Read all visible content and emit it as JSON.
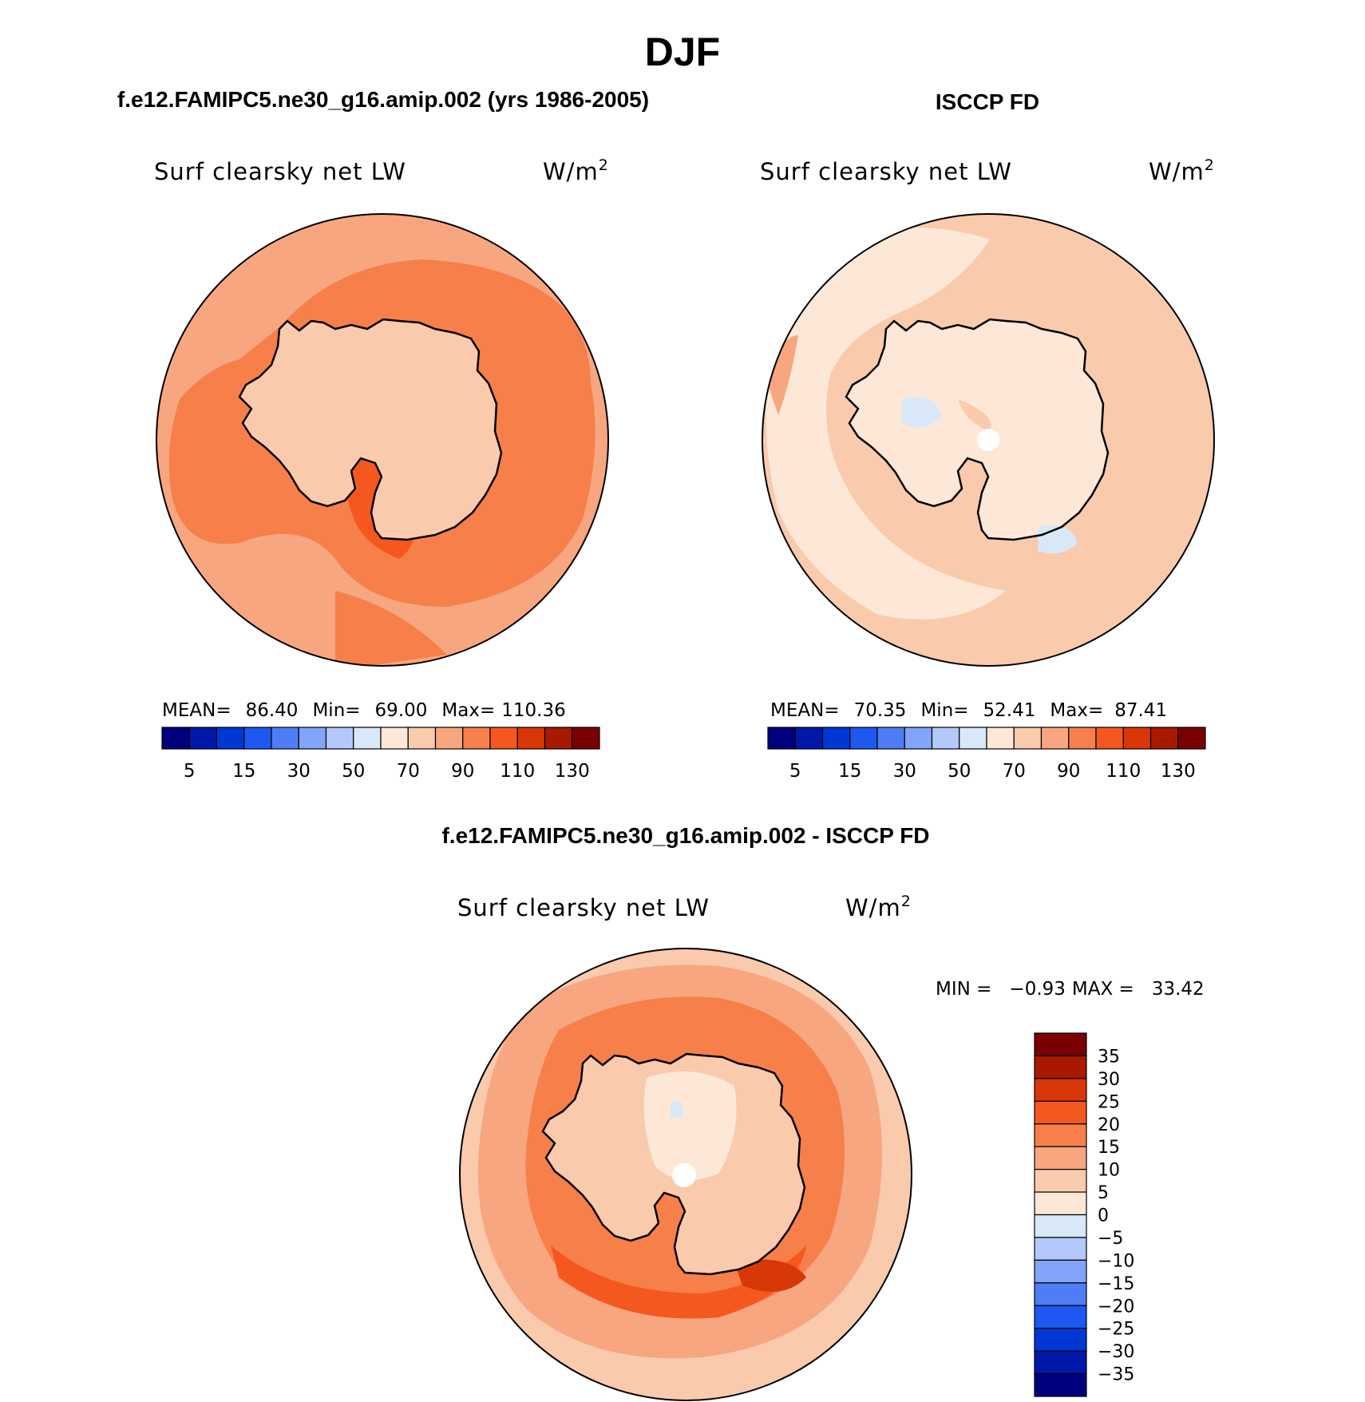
{
  "figure": {
    "title": "DJF"
  },
  "colors": {
    "seq": [
      "#00007f",
      "#0018a8",
      "#0038d6",
      "#1e58f0",
      "#4d7ef6",
      "#82a4f9",
      "#b3c9fb",
      "#d8e8f8",
      "#fde8d8",
      "#f9caac",
      "#f7a680",
      "#f77f4a",
      "#f5581f",
      "#d83708",
      "#a81a00",
      "#7b0000"
    ],
    "diff": [
      "#00007f",
      "#0018a8",
      "#0038d6",
      "#1e58f0",
      "#4d7ef6",
      "#82a4f9",
      "#b3c9fb",
      "#d8e8f8",
      "#fde8d8",
      "#f9caac",
      "#f7a680",
      "#f77f4a",
      "#f5581f",
      "#d83708",
      "#a81a00",
      "#7b0000"
    ]
  },
  "panels": [
    {
      "header": "f.e12.FAMIPC5.ne30_g16.amip.002 (yrs 1986-2005)",
      "variable": "Surf clearsky net LW",
      "units": "W/m",
      "units_sup": "2",
      "stats": {
        "mean_label": "MEAN=",
        "mean": "86.40",
        "min_label": "Min=",
        "min": "69.00",
        "max_label": "Max=",
        "max": "110.36"
      }
    },
    {
      "header": "ISCCP FD",
      "variable": "Surf clearsky net LW",
      "units": "W/m",
      "units_sup": "2",
      "stats": {
        "mean_label": "MEAN=",
        "mean": "70.35",
        "min_label": "Min=",
        "min": "52.41",
        "max_label": "Max=",
        "max": "87.41"
      }
    },
    {
      "header": "f.e12.FAMIPC5.ne30_g16.amip.002 - ISCCP FD",
      "variable": "Surf clearsky net LW",
      "units": "W/m",
      "units_sup": "2",
      "stats": {
        "min_label": "MIN =",
        "min": "−0.93",
        "max_label": "MAX =",
        "max": "33.42"
      }
    }
  ],
  "chart_data": [
    {
      "type": "heatmap",
      "projection": "south-polar-stereographic",
      "title": "f.e12.FAMIPC5.ne30_g16.amip.002 (yrs 1986-2005)",
      "field": "Surf clearsky net LW",
      "units": "W/m2",
      "mean": 86.4,
      "min": 69.0,
      "max": 110.36,
      "colorbar": {
        "orientation": "horizontal",
        "levels": [
          5,
          10,
          15,
          20,
          30,
          40,
          50,
          60,
          70,
          80,
          90,
          100,
          110,
          120,
          130
        ],
        "tick_labels": [
          "5",
          "15",
          "30",
          "50",
          "70",
          "90",
          "110",
          "130"
        ]
      }
    },
    {
      "type": "heatmap",
      "projection": "south-polar-stereographic",
      "title": "ISCCP FD",
      "field": "Surf clearsky net LW",
      "units": "W/m2",
      "mean": 70.35,
      "min": 52.41,
      "max": 87.41,
      "colorbar": {
        "orientation": "horizontal",
        "levels": [
          5,
          10,
          15,
          20,
          30,
          40,
          50,
          60,
          70,
          80,
          90,
          100,
          110,
          120,
          130
        ],
        "tick_labels": [
          "5",
          "15",
          "30",
          "50",
          "70",
          "90",
          "110",
          "130"
        ]
      }
    },
    {
      "type": "heatmap",
      "projection": "south-polar-stereographic",
      "title": "f.e12.FAMIPC5.ne30_g16.amip.002 - ISCCP FD",
      "field": "Surf clearsky net LW",
      "units": "W/m2",
      "min": -0.93,
      "max": 33.42,
      "colorbar": {
        "orientation": "vertical",
        "levels": [
          35,
          30,
          25,
          20,
          15,
          10,
          5,
          0,
          -5,
          -10,
          -15,
          -20,
          -25,
          -30,
          -35
        ],
        "tick_labels": [
          "35",
          "30",
          "25",
          "20",
          "15",
          "10",
          "5",
          "0",
          "−5",
          "−10",
          "−15",
          "−20",
          "−25",
          "−30",
          "−35"
        ]
      }
    }
  ]
}
